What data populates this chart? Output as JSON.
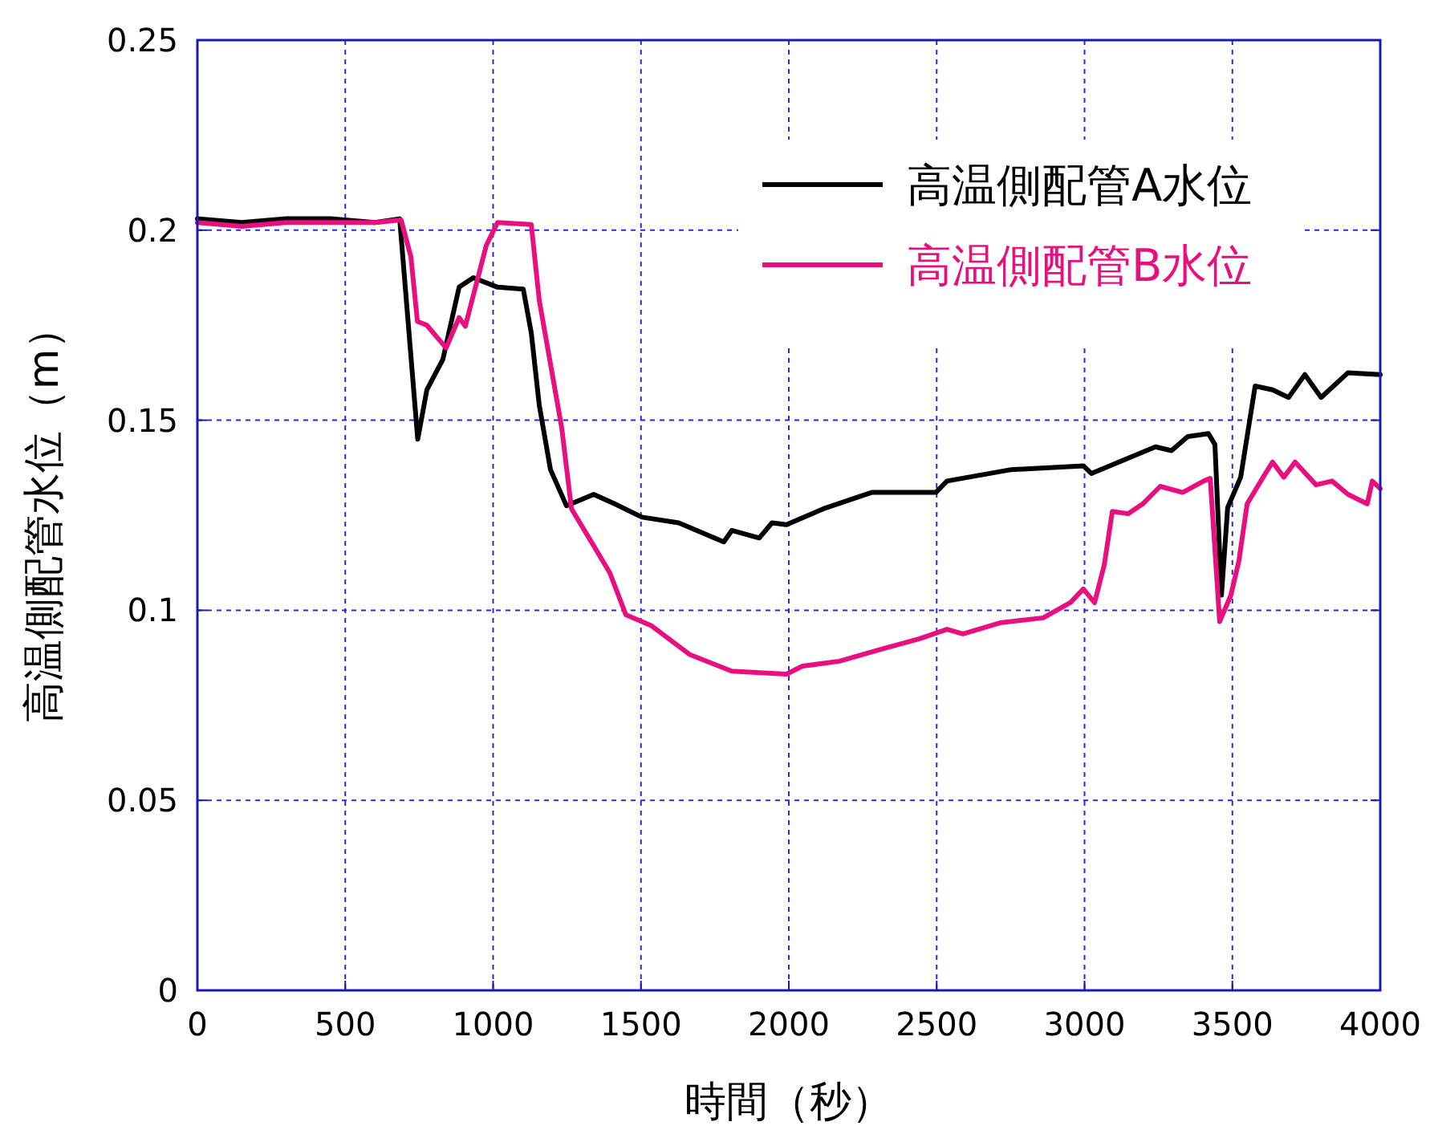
{
  "chart_data": {
    "type": "line",
    "xlabel": "時間（秒）",
    "ylabel": "高温側配管水位（m）",
    "xlim": [
      0,
      4000
    ],
    "ylim": [
      0,
      0.25
    ],
    "xticks": [
      0,
      500,
      1000,
      1500,
      2000,
      2500,
      3000,
      3500,
      4000
    ],
    "yticks": [
      0,
      0.05,
      0.1,
      0.15,
      0.2,
      0.25
    ],
    "grid": true,
    "legend": "top right",
    "line_style": "solid",
    "marker": "none",
    "series": [
      {
        "name": "高温側配管A水位",
        "color": "#000000",
        "x": [
          0,
          150,
          300,
          450,
          600,
          684,
          745,
          776,
          830,
          885,
          933,
          1015,
          1102,
          1129,
          1156,
          1194,
          1248,
          1340,
          1411,
          1503,
          1628,
          1780,
          1807,
          1900,
          1943,
          1992,
          2117,
          2280,
          2497,
          2535,
          2752,
          2996,
          3023,
          3240,
          3294,
          3349,
          3419,
          3441,
          3463,
          3484,
          3528,
          3577,
          3636,
          3690,
          3745,
          3800,
          3891,
          4000
        ],
        "values": [
          0.203,
          0.202,
          0.203,
          0.203,
          0.202,
          0.203,
          0.145,
          0.158,
          0.166,
          0.185,
          0.1875,
          0.185,
          0.1845,
          0.173,
          0.154,
          0.137,
          0.1275,
          0.1305,
          0.128,
          0.1245,
          0.123,
          0.118,
          0.121,
          0.119,
          0.123,
          0.1225,
          0.1267,
          0.131,
          0.131,
          0.134,
          0.137,
          0.138,
          0.136,
          0.143,
          0.142,
          0.1457,
          0.1465,
          0.1436,
          0.104,
          0.127,
          0.135,
          0.159,
          0.158,
          0.156,
          0.162,
          0.156,
          0.1625,
          0.162
        ]
      },
      {
        "name": "高温側配管B水位",
        "color": "#e8107f",
        "x": [
          0,
          150,
          300,
          450,
          600,
          689,
          722,
          744,
          776,
          841,
          885,
          906,
          977,
          1015,
          1129,
          1156,
          1232,
          1265,
          1340,
          1395,
          1449,
          1536,
          1666,
          1807,
          1992,
          2046,
          2171,
          2301,
          2442,
          2535,
          2589,
          2714,
          2860,
          2952,
          2996,
          3034,
          3067,
          3094,
          3148,
          3197,
          3256,
          3332,
          3403,
          3425,
          3457,
          3495,
          3522,
          3550,
          3604,
          3636,
          3674,
          3712,
          3783,
          3837,
          3891,
          3956,
          3973,
          4000
        ],
        "values": [
          0.202,
          0.201,
          0.202,
          0.202,
          0.202,
          0.2027,
          0.193,
          0.176,
          0.175,
          0.169,
          0.177,
          0.1747,
          0.196,
          0.202,
          0.2015,
          0.1816,
          0.148,
          0.1267,
          0.117,
          0.1098,
          0.0988,
          0.0959,
          0.0883,
          0.084,
          0.0832,
          0.0853,
          0.0866,
          0.0895,
          0.0925,
          0.095,
          0.0938,
          0.0967,
          0.098,
          0.102,
          0.1056,
          0.102,
          0.112,
          0.126,
          0.1254,
          0.128,
          0.1326,
          0.131,
          0.134,
          0.1347,
          0.097,
          0.104,
          0.113,
          0.128,
          0.135,
          0.139,
          0.135,
          0.139,
          0.133,
          0.134,
          0.1305,
          0.128,
          0.134,
          0.132
        ]
      }
    ]
  }
}
